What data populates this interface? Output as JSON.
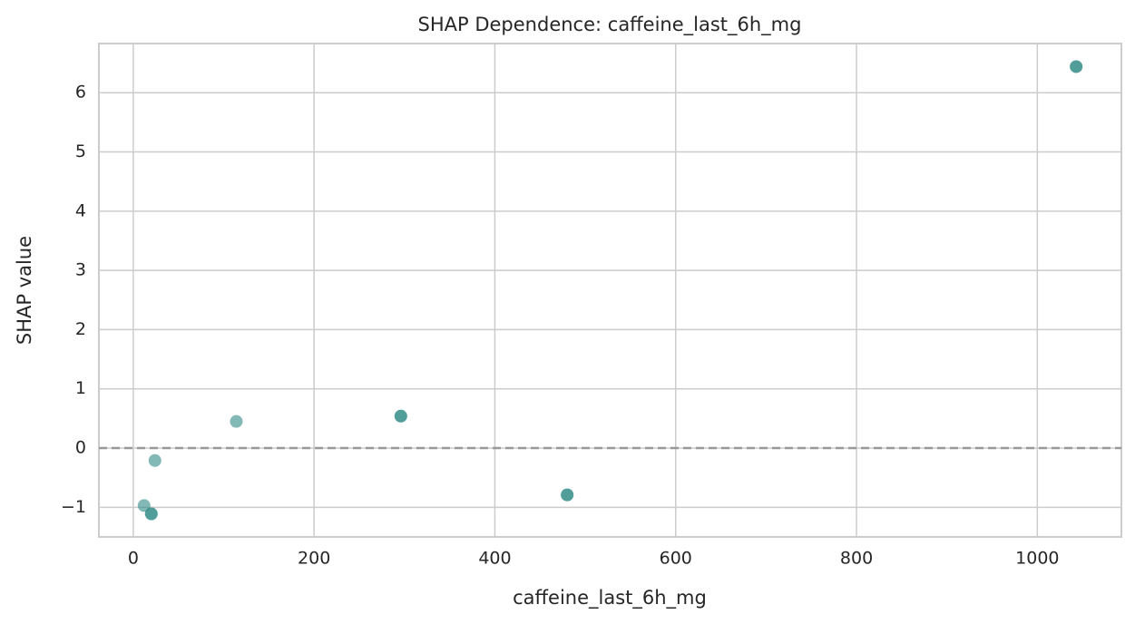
{
  "chart_data": {
    "type": "scatter",
    "title": "SHAP Dependence: caffeine_last_6h_mg",
    "x_label": "caffeine_last_6h_mg",
    "y_label": "SHAP value",
    "series": [
      {
        "color": "#2e8b87",
        "alpha": 0.6,
        "x": [
          1043,
          1043,
          296,
          296,
          114,
          480,
          480,
          24,
          12,
          20,
          20
        ],
        "values": [
          6.44,
          6.44,
          0.54,
          0.54,
          0.45,
          -0.79,
          -0.79,
          -0.21,
          -0.97,
          -1.11,
          -1.11
        ]
      }
    ],
    "xlim": [
      -38,
      1093
    ],
    "xticks": [
      0,
      200,
      400,
      600,
      800,
      1000
    ],
    "ylim": [
      -1.5,
      6.83
    ],
    "yticks": [
      {
        "value": -1,
        "label": "−1"
      },
      0,
      1,
      2,
      3,
      4,
      5,
      6
    ],
    "grid": true,
    "reference_line": {
      "y": 0,
      "color": "#999999",
      "dash": true
    }
  }
}
